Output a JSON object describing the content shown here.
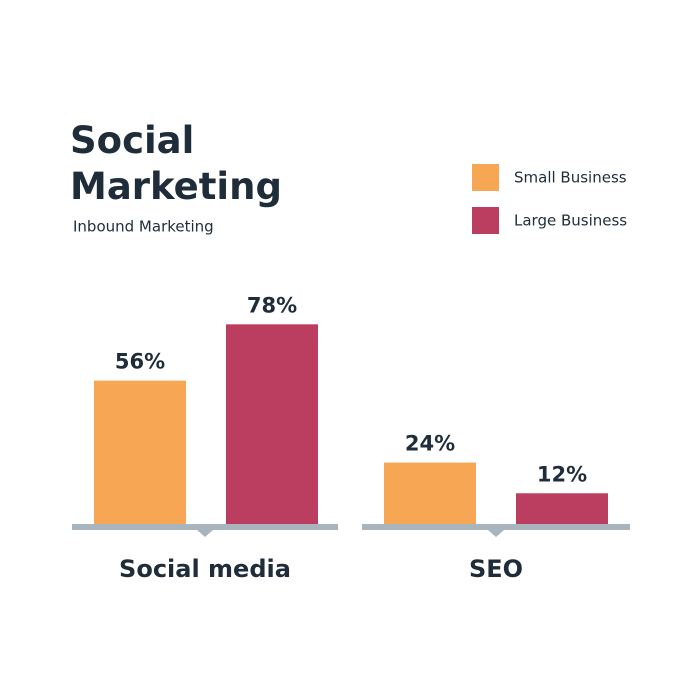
{
  "chart_data": {
    "type": "bar",
    "title": "Social Marketing",
    "subtitle": "Inbound Marketing",
    "categories": [
      "Social media",
      "SEO"
    ],
    "series": [
      {
        "name": "Small Business",
        "color": "#f7a654",
        "values": [
          56,
          24
        ],
        "value_labels": [
          "56%",
          "24%"
        ]
      },
      {
        "name": "Large Business",
        "color": "#bb3d5f",
        "values": [
          78,
          12
        ],
        "value_labels": [
          "78%",
          "12%"
        ]
      }
    ],
    "legend": "top-right"
  }
}
